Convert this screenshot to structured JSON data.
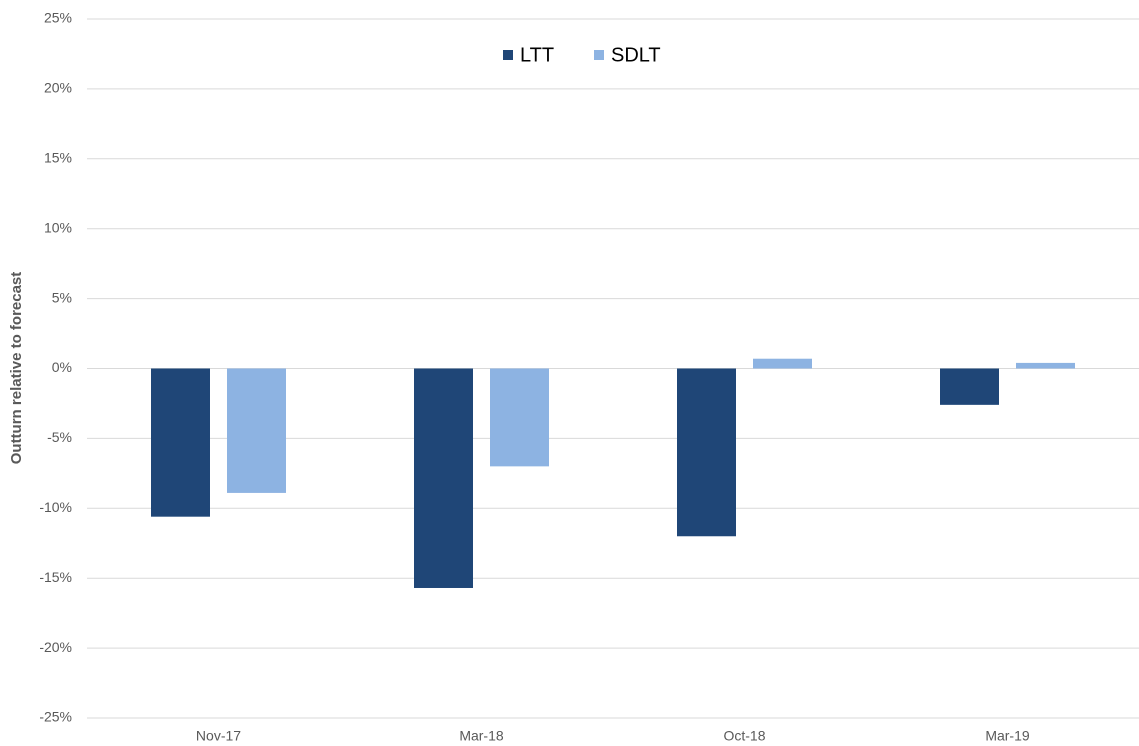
{
  "chart_data": {
    "type": "bar",
    "y_axis_label": "Outturn relative to forecast",
    "categories": [
      "Nov-17",
      "Mar-18",
      "Oct-18",
      "Mar-19"
    ],
    "series": [
      {
        "name": "LTT",
        "color": "#1f4677",
        "values": [
          -10.6,
          -15.7,
          -12.0,
          -2.6
        ]
      },
      {
        "name": "SDLT",
        "color": "#8db3e2",
        "values": [
          -8.9,
          -7.0,
          0.7,
          0.4
        ]
      }
    ],
    "ylim": [
      -25,
      25
    ],
    "yticks": [
      {
        "value": -25,
        "label": "-25%"
      },
      {
        "value": -20,
        "label": "-20%"
      },
      {
        "value": -15,
        "label": "-15%"
      },
      {
        "value": -10,
        "label": "-10%"
      },
      {
        "value": -5,
        "label": "-5%"
      },
      {
        "value": 0,
        "label": "0%"
      },
      {
        "value": 5,
        "label": "5%"
      },
      {
        "value": 10,
        "label": "10%"
      },
      {
        "value": 15,
        "label": "15%"
      },
      {
        "value": 20,
        "label": "20%"
      },
      {
        "value": 25,
        "label": "25%"
      }
    ],
    "grid": true,
    "legend": "top"
  }
}
